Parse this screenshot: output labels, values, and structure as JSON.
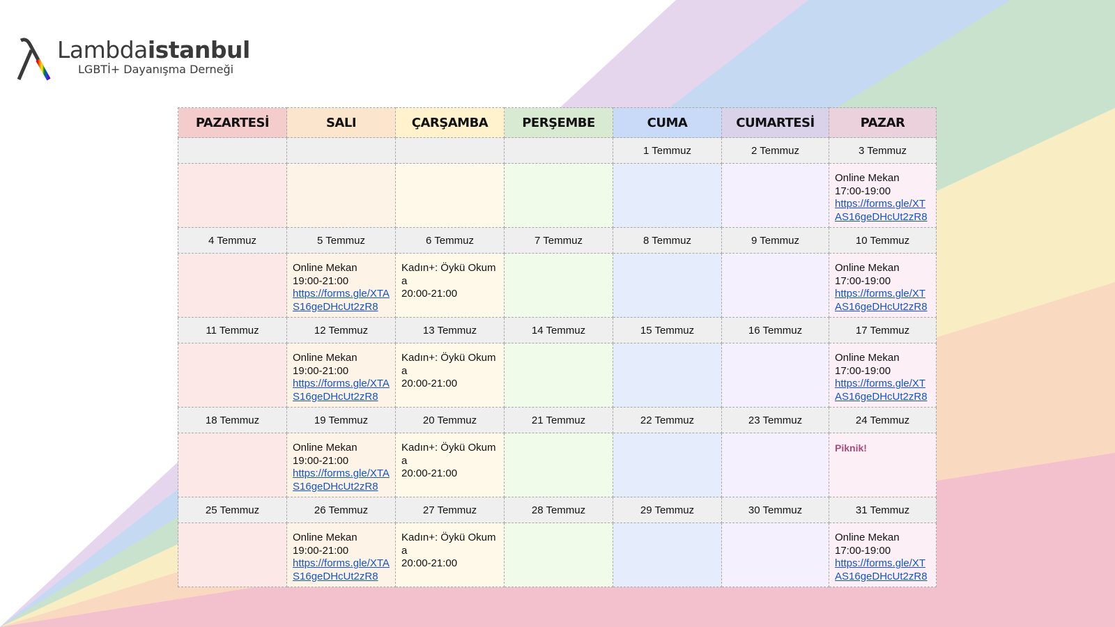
{
  "brand": {
    "name_light": "Lambda",
    "name_bold": "istanbul",
    "tagline": "LGBTİ+ Dayanışma Derneği"
  },
  "colors": {
    "header": [
      "#f4cccc",
      "#fce5cd",
      "#fff2cc",
      "#d9ead3",
      "#c9daf8",
      "#d9d2e9",
      "#ead1dc"
    ],
    "event": [
      "#fde8e8",
      "#fef3e7",
      "#fef9e8",
      "#f0fce9",
      "#e5edfc",
      "#f4f0fd",
      "#fcf0f6"
    ],
    "date_row": "#efefef",
    "link": "#1155cc",
    "highlight": "#a64d79"
  },
  "calendar": {
    "days": [
      "PAZARTESİ",
      "SALI",
      "ÇARŞAMBA",
      "PERŞEMBE",
      "CUMA",
      "CUMARTESİ",
      "PAZAR"
    ],
    "weeks": [
      {
        "dates": [
          "",
          "",
          "",
          "",
          "1 Temmuz",
          "2 Temmuz",
          "3 Temmuz"
        ],
        "events": [
          null,
          null,
          null,
          null,
          null,
          null,
          {
            "lines": [
              "Online Mekan",
              "17:00-19:00"
            ],
            "link": "https://forms.gle/XTAS16geDHcUt2zR8"
          }
        ]
      },
      {
        "dates": [
          "4 Temmuz",
          "5 Temmuz",
          "6 Temmuz",
          "7 Temmuz",
          "8 Temmuz",
          "9 Temmuz",
          "10 Temmuz"
        ],
        "events": [
          null,
          {
            "lines": [
              "Online Mekan",
              "19:00-21:00"
            ],
            "link": "https://forms.gle/XTAS16geDHcUt2zR8"
          },
          {
            "lines": [
              "Kadın+: Öykü Okuma",
              "20:00-21:00"
            ]
          },
          null,
          null,
          null,
          {
            "lines": [
              "Online Mekan",
              "17:00-19:00"
            ],
            "link": "https://forms.gle/XTAS16geDHcUt2zR8"
          }
        ]
      },
      {
        "dates": [
          "11 Temmuz",
          "12 Temmuz",
          "13 Temmuz",
          "14 Temmuz",
          "15 Temmuz",
          "16 Temmuz",
          "17 Temmuz"
        ],
        "events": [
          null,
          {
            "lines": [
              "Online Mekan",
              "19:00-21:00"
            ],
            "link": "https://forms.gle/XTAS16geDHcUt2zR8"
          },
          {
            "lines": [
              "Kadın+: Öykü Okuma",
              "20:00-21:00"
            ]
          },
          null,
          null,
          null,
          {
            "lines": [
              "Online Mekan",
              "17:00-19:00"
            ],
            "link": "https://forms.gle/XTAS16geDHcUt2zR8"
          }
        ]
      },
      {
        "dates": [
          "18 Temmuz",
          "19 Temmuz",
          "20 Temmuz",
          "21 Temmuz",
          "22 Temmuz",
          "23 Temmuz",
          "24 Temmuz"
        ],
        "events": [
          null,
          {
            "lines": [
              "Online Mekan",
              "19:00-21:00"
            ],
            "link": "https://forms.gle/XTAS16geDHcUt2zR8"
          },
          {
            "lines": [
              "Kadın+: Öykü Okuma",
              "20:00-21:00"
            ]
          },
          null,
          null,
          null,
          {
            "highlight": "Piknik!"
          }
        ]
      },
      {
        "dates": [
          "25 Temmuz",
          "26 Temmuz",
          "27 Temmuz",
          "28 Temmuz",
          "29 Temmuz",
          "30 Temmuz",
          "31 Temmuz"
        ],
        "events": [
          null,
          {
            "lines": [
              "Online Mekan",
              "19:00-21:00"
            ],
            "link": "https://forms.gle/XTAS16geDHcUt2zR8"
          },
          {
            "lines": [
              "Kadın+: Öykü Okuma",
              "20:00-21:00"
            ]
          },
          null,
          null,
          null,
          {
            "lines": [
              "Online Mekan",
              "17:00-19:00"
            ],
            "link": "https://forms.gle/XTAS16geDHcUt2zR8"
          }
        ]
      }
    ]
  }
}
